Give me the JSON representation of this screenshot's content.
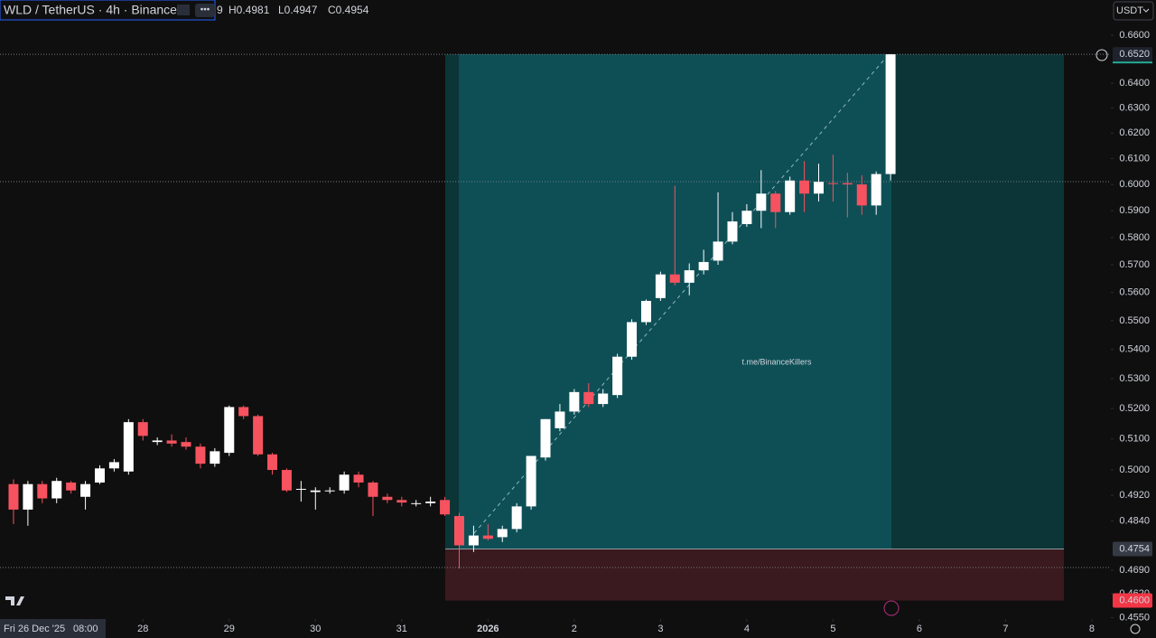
{
  "chart_data": {
    "type": "candlestick",
    "symbol": "WLD / TetherUS · 4h · Binance",
    "header_fragment": "9",
    "header_high": "H0.4981",
    "header_low": "L0.4947",
    "header_close": "C0.4954",
    "currency": "USDT",
    "watermark": "t.me/BinanceKillers",
    "crosshair_date": "Fri 26 Dec '25",
    "crosshair_time": "08:00",
    "log_scale": true,
    "up_color": "#ffffff",
    "down_color": "#f7525f",
    "xlim": [
      -0.94,
      76.32
    ],
    "ylim": [
      0.4546,
      0.675
    ],
    "xticks": [
      {
        "value": 9,
        "label": "28"
      },
      {
        "value": 15,
        "label": "29"
      },
      {
        "value": 21,
        "label": "30"
      },
      {
        "value": 27,
        "label": "31"
      },
      {
        "value": 33,
        "label": "2026"
      },
      {
        "value": 39,
        "label": "2"
      },
      {
        "value": 45,
        "label": "3"
      },
      {
        "value": 51,
        "label": "4"
      },
      {
        "value": 57,
        "label": "5"
      },
      {
        "value": 63,
        "label": "6"
      },
      {
        "value": 69,
        "label": "7"
      },
      {
        "value": 75,
        "label": "8"
      }
    ],
    "yticks": [
      {
        "value": 0.66,
        "label": "0.6600"
      },
      {
        "value": 0.64,
        "label": "0.6400"
      },
      {
        "value": 0.63,
        "label": "0.6300"
      },
      {
        "value": 0.62,
        "label": "0.6200"
      },
      {
        "value": 0.61,
        "label": "0.6100"
      },
      {
        "value": 0.6,
        "label": "0.6000"
      },
      {
        "value": 0.59,
        "label": "0.5900"
      },
      {
        "value": 0.58,
        "label": "0.5800"
      },
      {
        "value": 0.57,
        "label": "0.5700"
      },
      {
        "value": 0.56,
        "label": "0.5600"
      },
      {
        "value": 0.55,
        "label": "0.5500"
      },
      {
        "value": 0.54,
        "label": "0.5400"
      },
      {
        "value": 0.53,
        "label": "0.5300"
      },
      {
        "value": 0.52,
        "label": "0.5200"
      },
      {
        "value": 0.51,
        "label": "0.5100"
      },
      {
        "value": 0.5,
        "label": "0.5000"
      },
      {
        "value": 0.492,
        "label": "0.4920"
      },
      {
        "value": 0.484,
        "label": "0.4840"
      },
      {
        "value": 0.469,
        "label": "0.4690"
      },
      {
        "value": 0.462,
        "label": "0.4620"
      },
      {
        "value": 0.455,
        "label": "0.4550"
      }
    ],
    "position": {
      "target": {
        "value": 0.652,
        "label": "0.6520"
      },
      "entry": {
        "value": 0.4754,
        "label": "0.4754"
      },
      "stop": {
        "value": 0.46,
        "label": "0.4600"
      }
    },
    "open": [
      0.4955,
      0.4875,
      0.4955,
      0.491,
      0.496,
      0.4915,
      0.496,
      0.5005,
      0.4995,
      0.5155,
      0.509,
      0.5095,
      0.509,
      0.5075,
      0.502,
      0.5055,
      0.5205,
      0.5175,
      0.505,
      0.5,
      0.494,
      0.493,
      0.4935,
      0.4935,
      0.4985,
      0.496,
      0.4915,
      0.4905,
      0.4895,
      0.4895,
      0.4905,
      0.4855,
      0.4765,
      0.4795,
      0.479,
      0.4815,
      0.4885,
      0.504,
      0.5135,
      0.519,
      0.5255,
      0.5215,
      0.5245,
      0.5375,
      0.5495,
      0.558,
      0.5665,
      0.5635,
      0.568,
      0.5715,
      0.5785,
      0.585,
      0.59,
      0.5965,
      0.5895,
      0.6015,
      0.5965,
      0.6005,
      0.6005,
      0.6,
      0.592,
      0.604
    ],
    "high": [
      0.497,
      0.4965,
      0.4965,
      0.4975,
      0.4965,
      0.4965,
      0.5015,
      0.5035,
      0.5165,
      0.5165,
      0.5105,
      0.5115,
      0.5105,
      0.5085,
      0.507,
      0.521,
      0.521,
      0.518,
      0.5055,
      0.5005,
      0.4965,
      0.4945,
      0.4945,
      0.4995,
      0.4995,
      0.4965,
      0.4925,
      0.4915,
      0.4905,
      0.4915,
      0.4915,
      0.4865,
      0.4825,
      0.483,
      0.4825,
      0.4895,
      0.5045,
      0.5165,
      0.5215,
      0.5265,
      0.5285,
      0.5265,
      0.5385,
      0.5505,
      0.5575,
      0.5675,
      0.5995,
      0.5705,
      0.5755,
      0.597,
      0.5895,
      0.5925,
      0.6055,
      0.5975,
      0.603,
      0.609,
      0.608,
      0.6115,
      0.6045,
      0.6035,
      0.605,
      0.652
    ],
    "low": [
      0.483,
      0.4825,
      0.4895,
      0.4895,
      0.4925,
      0.4875,
      0.4955,
      0.4995,
      0.4985,
      0.5095,
      0.508,
      0.5075,
      0.5065,
      0.5005,
      0.501,
      0.5045,
      0.5165,
      0.5045,
      0.4985,
      0.493,
      0.49,
      0.4875,
      0.4925,
      0.4925,
      0.4945,
      0.4855,
      0.4895,
      0.4885,
      0.4885,
      0.4885,
      0.4855,
      0.4695,
      0.4745,
      0.478,
      0.4775,
      0.4805,
      0.4875,
      0.503,
      0.5125,
      0.518,
      0.5205,
      0.5205,
      0.5235,
      0.5365,
      0.5485,
      0.557,
      0.5625,
      0.559,
      0.5665,
      0.57,
      0.5775,
      0.584,
      0.5835,
      0.5835,
      0.5885,
      0.5895,
      0.5935,
      0.5935,
      0.5875,
      0.5885,
      0.5885,
      0.6015
    ],
    "close": [
      0.4875,
      0.4955,
      0.491,
      0.4965,
      0.4935,
      0.4955,
      0.5005,
      0.5025,
      0.5155,
      0.511,
      0.5095,
      0.5085,
      0.5075,
      0.502,
      0.506,
      0.5205,
      0.5175,
      0.505,
      0.5,
      0.4935,
      0.494,
      0.4935,
      0.4935,
      0.4985,
      0.496,
      0.4915,
      0.4905,
      0.4897,
      0.4895,
      0.49,
      0.486,
      0.4765,
      0.4795,
      0.4785,
      0.4815,
      0.4885,
      0.5045,
      0.5165,
      0.519,
      0.5255,
      0.5215,
      0.525,
      0.5375,
      0.5495,
      0.557,
      0.5665,
      0.5635,
      0.568,
      0.571,
      0.5785,
      0.586,
      0.59,
      0.5965,
      0.5895,
      0.6015,
      0.5965,
      0.601,
      0.6003,
      0.6,
      0.592,
      0.604,
      0.652
    ]
  }
}
